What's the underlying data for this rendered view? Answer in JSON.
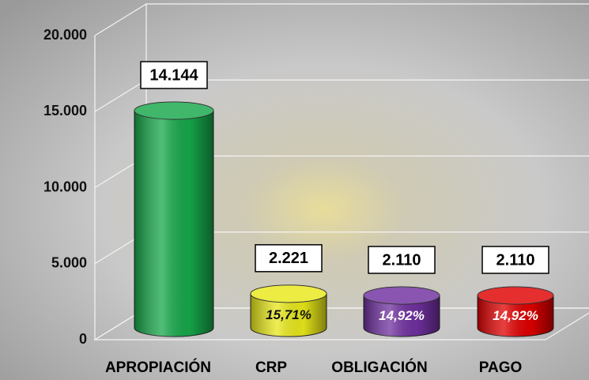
{
  "chart_data": {
    "type": "cylinder_bar",
    "categories": [
      "APROPIACIÓN",
      "CRP",
      "OBLIGACIÓN",
      "PAGO"
    ],
    "values": [
      14144,
      2221,
      2110,
      2110
    ],
    "value_labels": [
      "14.144",
      "2.221",
      "2.110",
      "2.110"
    ],
    "percent_labels": [
      null,
      "15,71%",
      "14,92%",
      "14,92%"
    ],
    "colors": [
      "#16a84a",
      "#e8e81a",
      "#7030a0",
      "#e00000"
    ],
    "percent_label_colors": [
      null,
      "#111111",
      "#ffffff",
      "#ffffff"
    ],
    "ylim": [
      0,
      20000
    ],
    "yticks": [
      0,
      {
        "value": 5000,
        "label": "5.000"
      },
      {
        "value": 10000,
        "label": "10.000"
      },
      {
        "value": 15000,
        "label": "15.000"
      },
      {
        "value": 20000,
        "label": "20.000"
      }
    ],
    "grid": true
  }
}
